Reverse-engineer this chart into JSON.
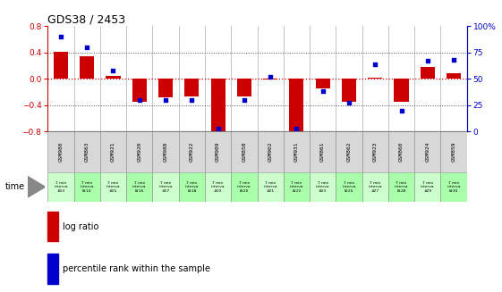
{
  "title": "GDS38 / 2453",
  "samples": [
    "GSM980",
    "GSM863",
    "GSM921",
    "GSM920",
    "GSM988",
    "GSM922",
    "GSM989",
    "GSM858",
    "GSM902",
    "GSM931",
    "GSM861",
    "GSM862",
    "GSM923",
    "GSM860",
    "GSM924",
    "GSM859"
  ],
  "time_labels": [
    "7 min\ninterva\n#13",
    "7 min\ninterva\nl#14",
    "7 min\ninterva\n#15",
    "7 min\ninterva\nl#16",
    "7 min\ninterva\n#17",
    "7 min\ninterva\nl#18",
    "7 min\ninterva\n#19",
    "7 min\ninterva\nl#20",
    "7 min\ninterva\n#21",
    "7 min\ninterva\nl#22",
    "7 min\ninterva\n#23",
    "7 min\ninterva\nl#25",
    "7 min\ninterva\n#27",
    "7 min\ninterva\nl#28",
    "7 min\ninterva\n#29",
    "7 min\ninterva\nl#30"
  ],
  "log_ratio": [
    0.41,
    0.35,
    0.05,
    -0.35,
    -0.28,
    -0.27,
    -0.82,
    -0.27,
    -0.01,
    -0.82,
    -0.15,
    -0.35,
    0.02,
    -0.35,
    0.18,
    0.08
  ],
  "percentile": [
    90,
    80,
    58,
    30,
    30,
    30,
    3,
    30,
    52,
    3,
    38,
    27,
    64,
    20,
    67,
    68
  ],
  "ylim_left": [
    -0.8,
    0.8
  ],
  "ylim_right": [
    0,
    100
  ],
  "yticks_left": [
    -0.8,
    -0.4,
    0.0,
    0.4,
    0.8
  ],
  "yticks_right": [
    0,
    25,
    50,
    75,
    100
  ],
  "bar_color": "#cc0000",
  "dot_color": "#0000cc",
  "bg_color": "#ffffff",
  "dotted_line_color": "#555555",
  "zero_line_color": "#cc0000",
  "gsm_bg": "#d8d8d8",
  "time_bg_alt1": "#ccffcc",
  "time_bg_alt2": "#aaffaa"
}
